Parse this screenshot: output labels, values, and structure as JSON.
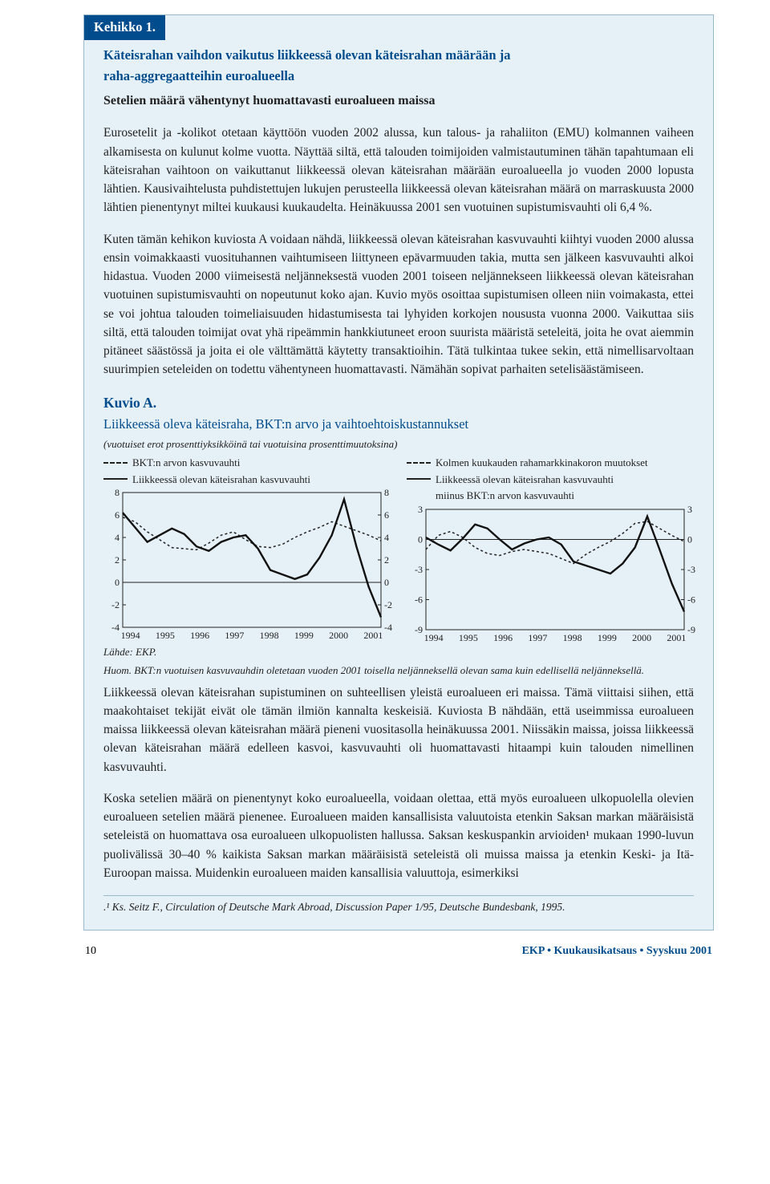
{
  "box_title": "Kehikko 1.",
  "subtitle_line1": "Käteisrahan vaihdon vaikutus liikkeessä olevan käteisrahan määrään ja",
  "subtitle_line2": "raha-aggregaatteihin euroalueella",
  "section_subtitle": "Setelien määrä vähentynyt huomattavasti euroalueen maissa",
  "p1": "Eurosetelit ja -kolikot otetaan käyttöön vuoden 2002 alussa, kun talous- ja rahaliiton (EMU) kolmannen vaiheen alkamisesta on kulunut kolme vuotta. Näyttää siltä, että talouden toimijoiden valmistautuminen tähän tapahtumaan eli käteisrahan vaihtoon on vaikuttanut liikkeessä olevan käteisrahan määrään euroalueella jo vuoden 2000 lopusta lähtien. Kausivaihtelusta puhdistettujen lukujen perusteella liikkeessä olevan käteisrahan määrä on marraskuusta 2000 lähtien pienentynyt miltei kuukausi kuukaudelta. Heinäkuussa 2001 sen vuotuinen supistumisvauhti oli 6,4 %.",
  "p2": "Kuten tämän kehikon kuviosta A voidaan nähdä, liikkeessä olevan käteisrahan kasvuvauhti kiihtyi vuoden 2000 alussa ensin voimakkaasti vuosituhannen vaihtumiseen liittyneen epävarmuuden takia, mutta sen jälkeen kasvuvauhti alkoi hidastua. Vuoden 2000 viimeisestä neljänneksestä vuoden 2001 toiseen neljännekseen liikkeessä olevan käteisrahan vuotuinen supistumisvauhti on nopeutunut koko ajan. Kuvio myös osoittaa supistumisen olleen niin voimakasta, ettei se voi johtua talouden toimeliaisuuden hidastumisesta tai lyhyiden korkojen noususta vuonna 2000. Vaikuttaa siis siltä, että talouden toimijat ovat yhä ripeämmin hankkiutuneet eroon suurista määristä seteleitä, joita he ovat aiemmin pitäneet säästössä ja joita ei ole välttämättä käytetty transaktioihin. Tätä tulkintaa tukee sekin, että nimellisarvoltaan suurimpien seteleiden on todettu vähentyneen huomattavasti. Nämähän sopivat parhaiten setelisäästämiseen.",
  "kuvio_head": "Kuvio A.",
  "kuvio_sub": "Liikkeessä oleva käteisraha, BKT:n arvo ja vaihtoehtoiskustannukset",
  "chart_note": "(vuotuiset erot prosenttiyksikköinä tai vuotuisina prosenttimuutoksina)",
  "legendL_1": "BKT:n arvon kasvuvauhti",
  "legendL_2": "Liikkeessä olevan käteisrahan kasvuvauhti",
  "legendR_1": "Kolmen kuukauden rahamarkkinakoron muutokset",
  "legendR_2": "Liikkeessä olevan käteisrahan kasvuvauhti",
  "legendR_3": "miinus BKT:n arvon kasvuvauhti",
  "chartL": {
    "type": "line",
    "x": [
      1994,
      1995,
      1996,
      1997,
      1998,
      1999,
      2000,
      2001
    ],
    "ylim": [
      -4,
      8
    ],
    "ystep": 2,
    "series_dashed": {
      "name": "BKT",
      "values": [
        5.8,
        5.4,
        4.5,
        3.8,
        3.1,
        3.0,
        2.9,
        3.5,
        4.2,
        4.5,
        3.8,
        3.2,
        3.1,
        3.4,
        4.0,
        4.5,
        4.9,
        5.4,
        5.0,
        4.6,
        4.2,
        3.7
      ],
      "color": "#222",
      "width": 1.5,
      "dash": "3,3"
    },
    "series_solid": {
      "name": "Cash",
      "values": [
        6.2,
        4.9,
        3.6,
        4.2,
        4.8,
        4.3,
        3.2,
        2.8,
        3.6,
        4.0,
        4.2,
        3.0,
        1.1,
        0.7,
        0.3,
        0.7,
        2.2,
        4.2,
        7.4,
        3.2,
        -0.4,
        -3.1
      ],
      "color": "#111",
      "width": 2.4
    },
    "background": "#e6f1f7",
    "grid_color": "#222"
  },
  "chartR": {
    "type": "line",
    "x": [
      1994,
      1995,
      1996,
      1997,
      1998,
      1999,
      2000,
      2001
    ],
    "ylim": [
      -9,
      3
    ],
    "ystep": 3,
    "series_dashed": {
      "name": "Rate",
      "values": [
        -1.0,
        0.4,
        0.8,
        0.2,
        -0.8,
        -1.4,
        -1.6,
        -1.2,
        -1.0,
        -1.2,
        -1.4,
        -1.9,
        -2.4,
        -1.5,
        -0.8,
        -0.2,
        0.6,
        1.6,
        1.8,
        1.1,
        0.4,
        -0.2
      ],
      "color": "#222",
      "width": 1.5,
      "dash": "3,3"
    },
    "series_solid": {
      "name": "Diff",
      "values": [
        0.2,
        -0.5,
        -1.1,
        0.1,
        1.5,
        1.1,
        0.0,
        -1.0,
        -0.4,
        0.0,
        0.2,
        -0.5,
        -2.2,
        -2.6,
        -3.0,
        -3.4,
        -2.4,
        -0.8,
        2.3,
        -1.0,
        -4.4,
        -7.2
      ],
      "color": "#111",
      "width": 2.4
    },
    "background": "#e6f1f7",
    "grid_color": "#222"
  },
  "source": "Lähde: EKP.",
  "chart_footnote": "Huom. BKT:n vuotuisen kasvuvauhdin oletetaan vuoden 2001 toisella neljänneksellä olevan sama kuin edellisellä neljänneksellä.",
  "p3": "Liikkeessä olevan käteisrahan supistuminen on suhteellisen yleistä euroalueen eri maissa. Tämä viittaisi siihen, että maakohtaiset tekijät eivät ole tämän ilmiön kannalta keskeisiä. Kuviosta B nähdään, että useimmissa euroalueen maissa liikkeessä olevan käteisrahan määrä pieneni vuositasolla heinäkuussa 2001. Niissäkin maissa, joissa liikkeessä olevan käteisrahan määrä edelleen kasvoi, kasvuvauhti oli huomattavasti hitaampi kuin talouden nimellinen kasvuvauhti.",
  "p4": "Koska setelien määrä on pienentynyt koko euroalueella, voidaan olettaa, että myös euroalueen ulkopuolella olevien euroalueen setelien määrä pienenee. Euroalueen maiden kansallisista valuutoista etenkin Saksan markan määräisistä seteleistä on huomattava osa euroalueen ulkopuolisten hallussa. Saksan keskuspankin arvioiden¹ mukaan 1990-luvun puolivälissä 30–40 % kaikista Saksan markan määräisistä seteleistä oli muissa maissa ja etenkin Keski- ja Itä-Euroopan maissa. Muidenkin euroalueen maiden kansallisia valuuttoja, esimerkiksi",
  "foot_ref": ".¹ Ks. Seitz F., Circulation of Deutsche Mark Abroad, Discussion Paper 1/95, Deutsche Bundesbank, 1995.",
  "page_num": "10",
  "footer_right": "EKP • Kuukausikatsaus • Syyskuu 2001"
}
